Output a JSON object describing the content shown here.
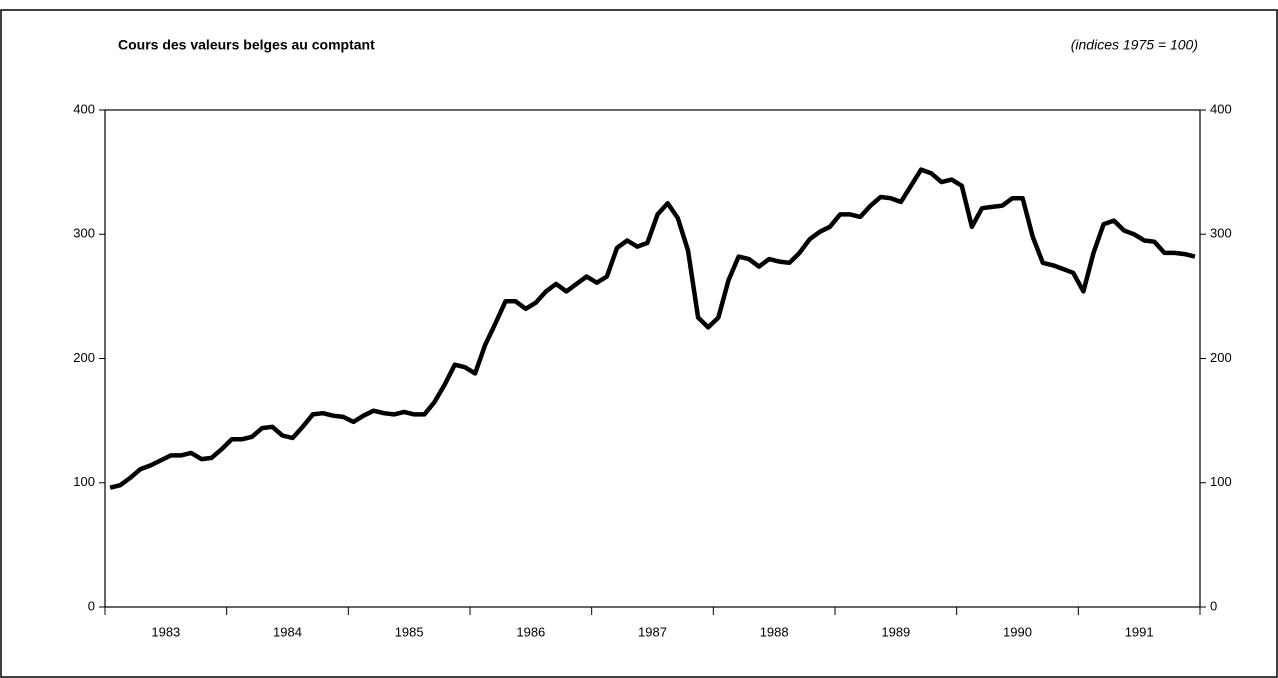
{
  "chart_data": {
    "type": "line",
    "title": "Cours des valeurs belges au comptant",
    "subtitle": "(indices 1975 = 100)",
    "categories": [
      "1983",
      "1984",
      "1985",
      "1986",
      "1987",
      "1988",
      "1989",
      "1990",
      "1991"
    ],
    "xlim": [
      1983,
      1992
    ],
    "xticks": [
      1983,
      1984,
      1985,
      1986,
      1987,
      1988,
      1989,
      1990,
      1991,
      1992
    ],
    "ylim": [
      0,
      400
    ],
    "yticks": [
      0,
      100,
      200,
      300,
      400
    ],
    "y2lim": [
      0,
      400
    ],
    "y2ticks": [
      0,
      100,
      200,
      300,
      400
    ],
    "x": [
      1983.042,
      1983.125,
      1983.208,
      1983.292,
      1983.375,
      1983.458,
      1983.542,
      1983.625,
      1983.708,
      1983.792,
      1983.875,
      1983.958,
      1984.042,
      1984.125,
      1984.208,
      1984.292,
      1984.375,
      1984.458,
      1984.542,
      1984.625,
      1984.708,
      1984.792,
      1984.875,
      1984.958,
      1985.042,
      1985.125,
      1985.208,
      1985.292,
      1985.375,
      1985.458,
      1985.542,
      1985.625,
      1985.708,
      1985.792,
      1985.875,
      1985.958,
      1986.042,
      1986.125,
      1986.208,
      1986.292,
      1986.375,
      1986.458,
      1986.542,
      1986.625,
      1986.708,
      1986.792,
      1986.875,
      1986.958,
      1987.042,
      1987.125,
      1987.208,
      1987.292,
      1987.375,
      1987.458,
      1987.542,
      1987.625,
      1987.708,
      1987.792,
      1987.875,
      1987.958,
      1988.042,
      1988.125,
      1988.208,
      1988.292,
      1988.375,
      1988.458,
      1988.542,
      1988.625,
      1988.708,
      1988.792,
      1988.875,
      1988.958,
      1989.042,
      1989.125,
      1989.208,
      1989.292,
      1989.375,
      1989.458,
      1989.542,
      1989.625,
      1989.708,
      1989.792,
      1989.875,
      1989.958,
      1990.042,
      1990.125,
      1990.208,
      1990.292,
      1990.375,
      1990.458,
      1990.542,
      1990.625,
      1990.708,
      1990.792,
      1990.875,
      1990.958,
      1991.042,
      1991.125,
      1991.208,
      1991.292,
      1991.375,
      1991.458,
      1991.542,
      1991.625,
      1991.708,
      1991.792,
      1991.875,
      1991.958
    ],
    "series": [
      {
        "color": "#000000",
        "values": [
          96,
          98,
          104,
          111,
          114,
          118,
          122,
          122,
          124,
          119,
          120,
          127,
          135,
          135,
          137,
          144,
          145,
          138,
          136,
          145,
          155,
          156,
          154,
          153,
          149,
          154,
          158,
          156,
          155,
          157,
          155,
          155,
          165,
          179,
          195,
          193,
          188,
          211,
          228,
          246,
          246,
          240,
          245,
          254,
          260,
          254,
          260,
          266,
          261,
          266,
          289,
          295,
          290,
          293,
          316,
          325,
          313,
          287,
          233,
          225,
          233,
          263,
          282,
          280,
          274,
          280,
          278,
          277,
          285,
          296,
          302,
          306,
          316,
          316,
          314,
          323,
          330,
          329,
          326,
          339,
          352,
          349,
          342,
          344,
          339,
          306,
          321,
          322,
          323,
          329,
          329,
          298,
          277,
          275,
          272,
          269,
          254,
          285,
          308,
          311,
          303,
          300,
          295,
          294,
          285,
          285,
          284,
          282
        ]
      }
    ]
  }
}
